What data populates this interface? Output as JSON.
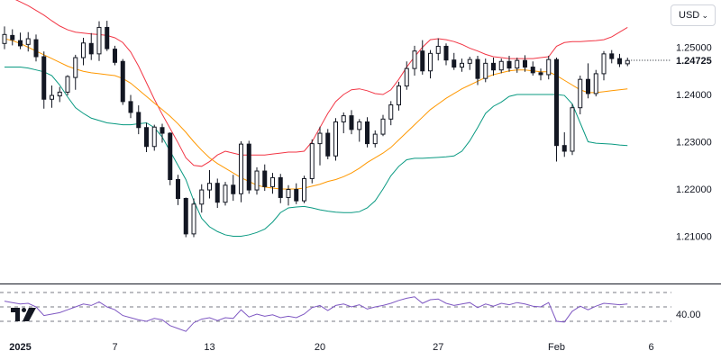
{
  "currency_selector": {
    "value": "USD",
    "icon": "chevron-down-icon"
  },
  "logo": {
    "icon": "tradingview-logo-icon"
  },
  "chart_data": {
    "type": "candlestick",
    "symbol_quote": "1.24725",
    "colors": {
      "candle": "#131722",
      "bb_upper": "#f23645",
      "bb_lower": "#089981",
      "bb_basis": "#ff9800",
      "rsi": "#7e57c2",
      "last_price_line": "#131722"
    },
    "x_ticks": [
      {
        "label": "2025",
        "index": 2,
        "bold": true
      },
      {
        "label": "7",
        "index": 14
      },
      {
        "label": "13",
        "index": 26
      },
      {
        "label": "20",
        "index": 40
      },
      {
        "label": "27",
        "index": 55
      },
      {
        "label": "Feb",
        "index": 70
      },
      {
        "label": "6",
        "index": 82
      }
    ],
    "y_ticks": [
      "1.25000",
      "1.24000",
      "1.23000",
      "1.22000",
      "1.21000"
    ],
    "ylim": [
      1.2,
      1.26
    ],
    "rsi_pane": {
      "tick_label": "40.00",
      "ylim": [
        0,
        100
      ],
      "levels": [
        70,
        50,
        30
      ]
    },
    "candles": [
      [
        1.2508,
        1.2544,
        1.2496,
        1.2527
      ],
      [
        1.2525,
        1.2538,
        1.2504,
        1.2516
      ],
      [
        1.2514,
        1.2531,
        1.2496,
        1.2503
      ],
      [
        1.2506,
        1.2532,
        1.2491,
        1.2518
      ],
      [
        1.2516,
        1.2527,
        1.247,
        1.248
      ],
      [
        1.248,
        1.2491,
        1.237,
        1.239
      ],
      [
        1.239,
        1.2419,
        1.2372,
        1.2398
      ],
      [
        1.2397,
        1.2416,
        1.2384,
        1.2405
      ],
      [
        1.2405,
        1.2441,
        1.2398,
        1.2438
      ],
      [
        1.2436,
        1.2484,
        1.241,
        1.2478
      ],
      [
        1.2478,
        1.252,
        1.2462,
        1.2509
      ],
      [
        1.2508,
        1.253,
        1.2473,
        1.2486
      ],
      [
        1.2486,
        1.2555,
        1.2471,
        1.2542
      ],
      [
        1.2542,
        1.2556,
        1.2492,
        1.2497
      ],
      [
        1.2496,
        1.2503,
        1.2462,
        1.2468
      ],
      [
        1.247,
        1.2475,
        1.2378,
        1.2385
      ],
      [
        1.2385,
        1.2399,
        1.235,
        1.2362
      ],
      [
        1.2362,
        1.2377,
        1.2316,
        1.233
      ],
      [
        1.233,
        1.234,
        1.2278,
        1.229
      ],
      [
        1.229,
        1.2336,
        1.2281,
        1.2331
      ],
      [
        1.233,
        1.2338,
        1.2298,
        1.2318
      ],
      [
        1.2318,
        1.232,
        1.2208,
        1.222
      ],
      [
        1.222,
        1.223,
        1.2166,
        1.218
      ],
      [
        1.218,
        1.2182,
        1.2098,
        1.2105
      ],
      [
        1.2105,
        1.218,
        1.2098,
        1.2168
      ],
      [
        1.2168,
        1.221,
        1.215,
        1.2198
      ],
      [
        1.2198,
        1.224,
        1.218,
        1.2212
      ],
      [
        1.2212,
        1.2222,
        1.216,
        1.2172
      ],
      [
        1.2172,
        1.2215,
        1.2165,
        1.2208
      ],
      [
        1.2208,
        1.223,
        1.2175,
        1.219
      ],
      [
        1.219,
        1.2301,
        1.2172,
        1.2295
      ],
      [
        1.2295,
        1.2302,
        1.219,
        1.2198
      ],
      [
        1.2198,
        1.2246,
        1.2188,
        1.2238
      ],
      [
        1.2238,
        1.2252,
        1.2196,
        1.2205
      ],
      [
        1.2205,
        1.2234,
        1.219,
        1.2224
      ],
      [
        1.2224,
        1.2232,
        1.217,
        1.2182
      ],
      [
        1.2182,
        1.2208,
        1.2165,
        1.2199
      ],
      [
        1.2199,
        1.2212,
        1.2168,
        1.2175
      ],
      [
        1.2175,
        1.2228,
        1.217,
        1.2222
      ],
      [
        1.2222,
        1.2305,
        1.2212,
        1.2296
      ],
      [
        1.2296,
        1.2332,
        1.225,
        1.2318
      ],
      [
        1.2318,
        1.2327,
        1.2263,
        1.227
      ],
      [
        1.227,
        1.235,
        1.226,
        1.2342
      ],
      [
        1.2342,
        1.2362,
        1.2318,
        1.2355
      ],
      [
        1.2355,
        1.2367,
        1.2316,
        1.2326
      ],
      [
        1.2326,
        1.2348,
        1.23,
        1.2342
      ],
      [
        1.2342,
        1.2352,
        1.2288,
        1.2296
      ],
      [
        1.2296,
        1.2324,
        1.2288,
        1.2316
      ],
      [
        1.2316,
        1.2357,
        1.2312,
        1.2348
      ],
      [
        1.2348,
        1.2386,
        1.2335,
        1.2378
      ],
      [
        1.2378,
        1.2427,
        1.2366,
        1.2418
      ],
      [
        1.2418,
        1.247,
        1.241,
        1.2455
      ],
      [
        1.2455,
        1.2503,
        1.244,
        1.2492
      ],
      [
        1.2492,
        1.2515,
        1.2442,
        1.245
      ],
      [
        1.245,
        1.2494,
        1.2434,
        1.2487
      ],
      [
        1.2487,
        1.2519,
        1.2472,
        1.2502
      ],
      [
        1.2502,
        1.2508,
        1.2462,
        1.2473
      ],
      [
        1.2473,
        1.2488,
        1.2452,
        1.2458
      ],
      [
        1.2458,
        1.2476,
        1.2448,
        1.2466
      ],
      [
        1.2466,
        1.248,
        1.2452,
        1.2474
      ],
      [
        1.2474,
        1.2482,
        1.242,
        1.2434
      ],
      [
        1.2434,
        1.2476,
        1.2426,
        1.2466
      ],
      [
        1.2466,
        1.2478,
        1.244,
        1.2452
      ],
      [
        1.2452,
        1.2476,
        1.2445,
        1.247
      ],
      [
        1.247,
        1.2482,
        1.2448,
        1.2456
      ],
      [
        1.2456,
        1.2478,
        1.2446,
        1.2472
      ],
      [
        1.2472,
        1.2483,
        1.2448,
        1.2458
      ],
      [
        1.2458,
        1.247,
        1.244,
        1.2446
      ],
      [
        1.2446,
        1.2455,
        1.243,
        1.2442
      ],
      [
        1.2442,
        1.2482,
        1.2432,
        1.2474
      ],
      [
        1.2474,
        1.2478,
        1.2258,
        1.2292
      ],
      [
        1.2292,
        1.232,
        1.2268,
        1.228
      ],
      [
        1.228,
        1.238,
        1.2272,
        1.2372
      ],
      [
        1.2372,
        1.244,
        1.2358,
        1.2432
      ],
      [
        1.2432,
        1.2466,
        1.2392,
        1.2402
      ],
      [
        1.2402,
        1.2452,
        1.2396,
        1.2444
      ],
      [
        1.2444,
        1.2492,
        1.243,
        1.2486
      ],
      [
        1.2486,
        1.2494,
        1.2466,
        1.2476
      ],
      [
        1.2476,
        1.2486,
        1.2458,
        1.2465
      ],
      [
        1.2465,
        1.2478,
        1.246,
        1.2472
      ]
    ],
    "bb_upper": [
      1.261,
      1.2604,
      1.2596,
      1.2588,
      1.2578,
      1.2568,
      1.2556,
      1.2545,
      1.2537,
      1.2532,
      1.253,
      1.2528,
      1.2527,
      1.2525,
      1.252,
      1.251,
      1.249,
      1.246,
      1.2425,
      1.239,
      1.2358,
      1.2328,
      1.2298,
      1.2266,
      1.225,
      1.2248,
      1.2258,
      1.2272,
      1.228,
      1.2276,
      1.2272,
      1.2272,
      1.2272,
      1.2272,
      1.2274,
      1.2276,
      1.2278,
      1.2278,
      1.228,
      1.23,
      1.233,
      1.236,
      1.2385,
      1.24,
      1.241,
      1.2412,
      1.2408,
      1.2402,
      1.24,
      1.241,
      1.2432,
      1.2458,
      1.248,
      1.25,
      1.2516,
      1.2518,
      1.2516,
      1.2512,
      1.2506,
      1.2498,
      1.2492,
      1.2485,
      1.248,
      1.2478,
      1.2476,
      1.2476,
      1.2476,
      1.2476,
      1.2478,
      1.248,
      1.2502,
      1.251,
      1.2512,
      1.2512,
      1.2513,
      1.2514,
      1.2516,
      1.2522,
      1.2532,
      1.2542
    ],
    "bb_basis": [
      1.2518,
      1.2514,
      1.2508,
      1.25,
      1.2492,
      1.2484,
      1.2476,
      1.2468,
      1.246,
      1.2454,
      1.2449,
      1.2446,
      1.2444,
      1.2442,
      1.244,
      1.2434,
      1.2424,
      1.241,
      1.2396,
      1.2382,
      1.2368,
      1.2354,
      1.2338,
      1.232,
      1.23,
      1.2282,
      1.2266,
      1.2254,
      1.2244,
      1.2234,
      1.2224,
      1.2216,
      1.2208,
      1.2204,
      1.2202,
      1.22,
      1.22,
      1.22,
      1.2202,
      1.2206,
      1.221,
      1.2216,
      1.222,
      1.2226,
      1.2234,
      1.2244,
      1.2256,
      1.2266,
      1.2276,
      1.2288,
      1.2304,
      1.232,
      1.2336,
      1.2352,
      1.2368,
      1.238,
      1.2392,
      1.2402,
      1.2412,
      1.242,
      1.2428,
      1.2436,
      1.2442,
      1.2446,
      1.245,
      1.2452,
      1.2452,
      1.245,
      1.2448,
      1.2448,
      1.244,
      1.243,
      1.242,
      1.241,
      1.2404,
      1.2404,
      1.2406,
      1.2408,
      1.241,
      1.2412
    ],
    "bb_lower": [
      1.2458,
      1.2458,
      1.2458,
      1.2456,
      1.2452,
      1.2448,
      1.244,
      1.242,
      1.2395,
      1.2372,
      1.236,
      1.235,
      1.2345,
      1.234,
      1.2338,
      1.2336,
      1.2336,
      1.2338,
      1.234,
      1.233,
      1.231,
      1.228,
      1.225,
      1.222,
      1.2175,
      1.2138,
      1.212,
      1.211,
      1.2103,
      1.21,
      1.21,
      1.2103,
      1.2108,
      1.2115,
      1.213,
      1.215,
      1.216,
      1.2162,
      1.2163,
      1.216,
      1.2156,
      1.2153,
      1.2151,
      1.215,
      1.215,
      1.2152,
      1.216,
      1.2175,
      1.22,
      1.2228,
      1.2248,
      1.2262,
      1.2265,
      1.2265,
      1.2266,
      1.2267,
      1.2268,
      1.227,
      1.228,
      1.2302,
      1.233,
      1.236,
      1.2375,
      1.2384,
      1.2396,
      1.24,
      1.24,
      1.24,
      1.24,
      1.24,
      1.24,
      1.2398,
      1.238,
      1.234,
      1.23,
      1.2297,
      1.2296,
      1.2295,
      1.2293,
      1.2292
    ],
    "rsi": [
      58,
      56,
      54,
      55,
      50,
      38,
      40,
      42,
      46,
      50,
      54,
      52,
      57,
      50,
      46,
      38,
      35,
      32,
      30,
      34,
      32,
      24,
      20,
      16,
      28,
      33,
      35,
      31,
      35,
      34,
      46,
      36,
      40,
      37,
      39,
      35,
      37,
      35,
      40,
      49,
      52,
      45,
      52,
      54,
      50,
      53,
      47,
      50,
      52,
      55,
      59,
      62,
      64,
      55,
      60,
      61,
      55,
      52,
      54,
      56,
      49,
      54,
      51,
      55,
      53,
      56,
      54,
      51,
      50,
      56,
      30,
      29,
      44,
      51,
      46,
      51,
      55,
      54,
      53,
      54
    ]
  }
}
